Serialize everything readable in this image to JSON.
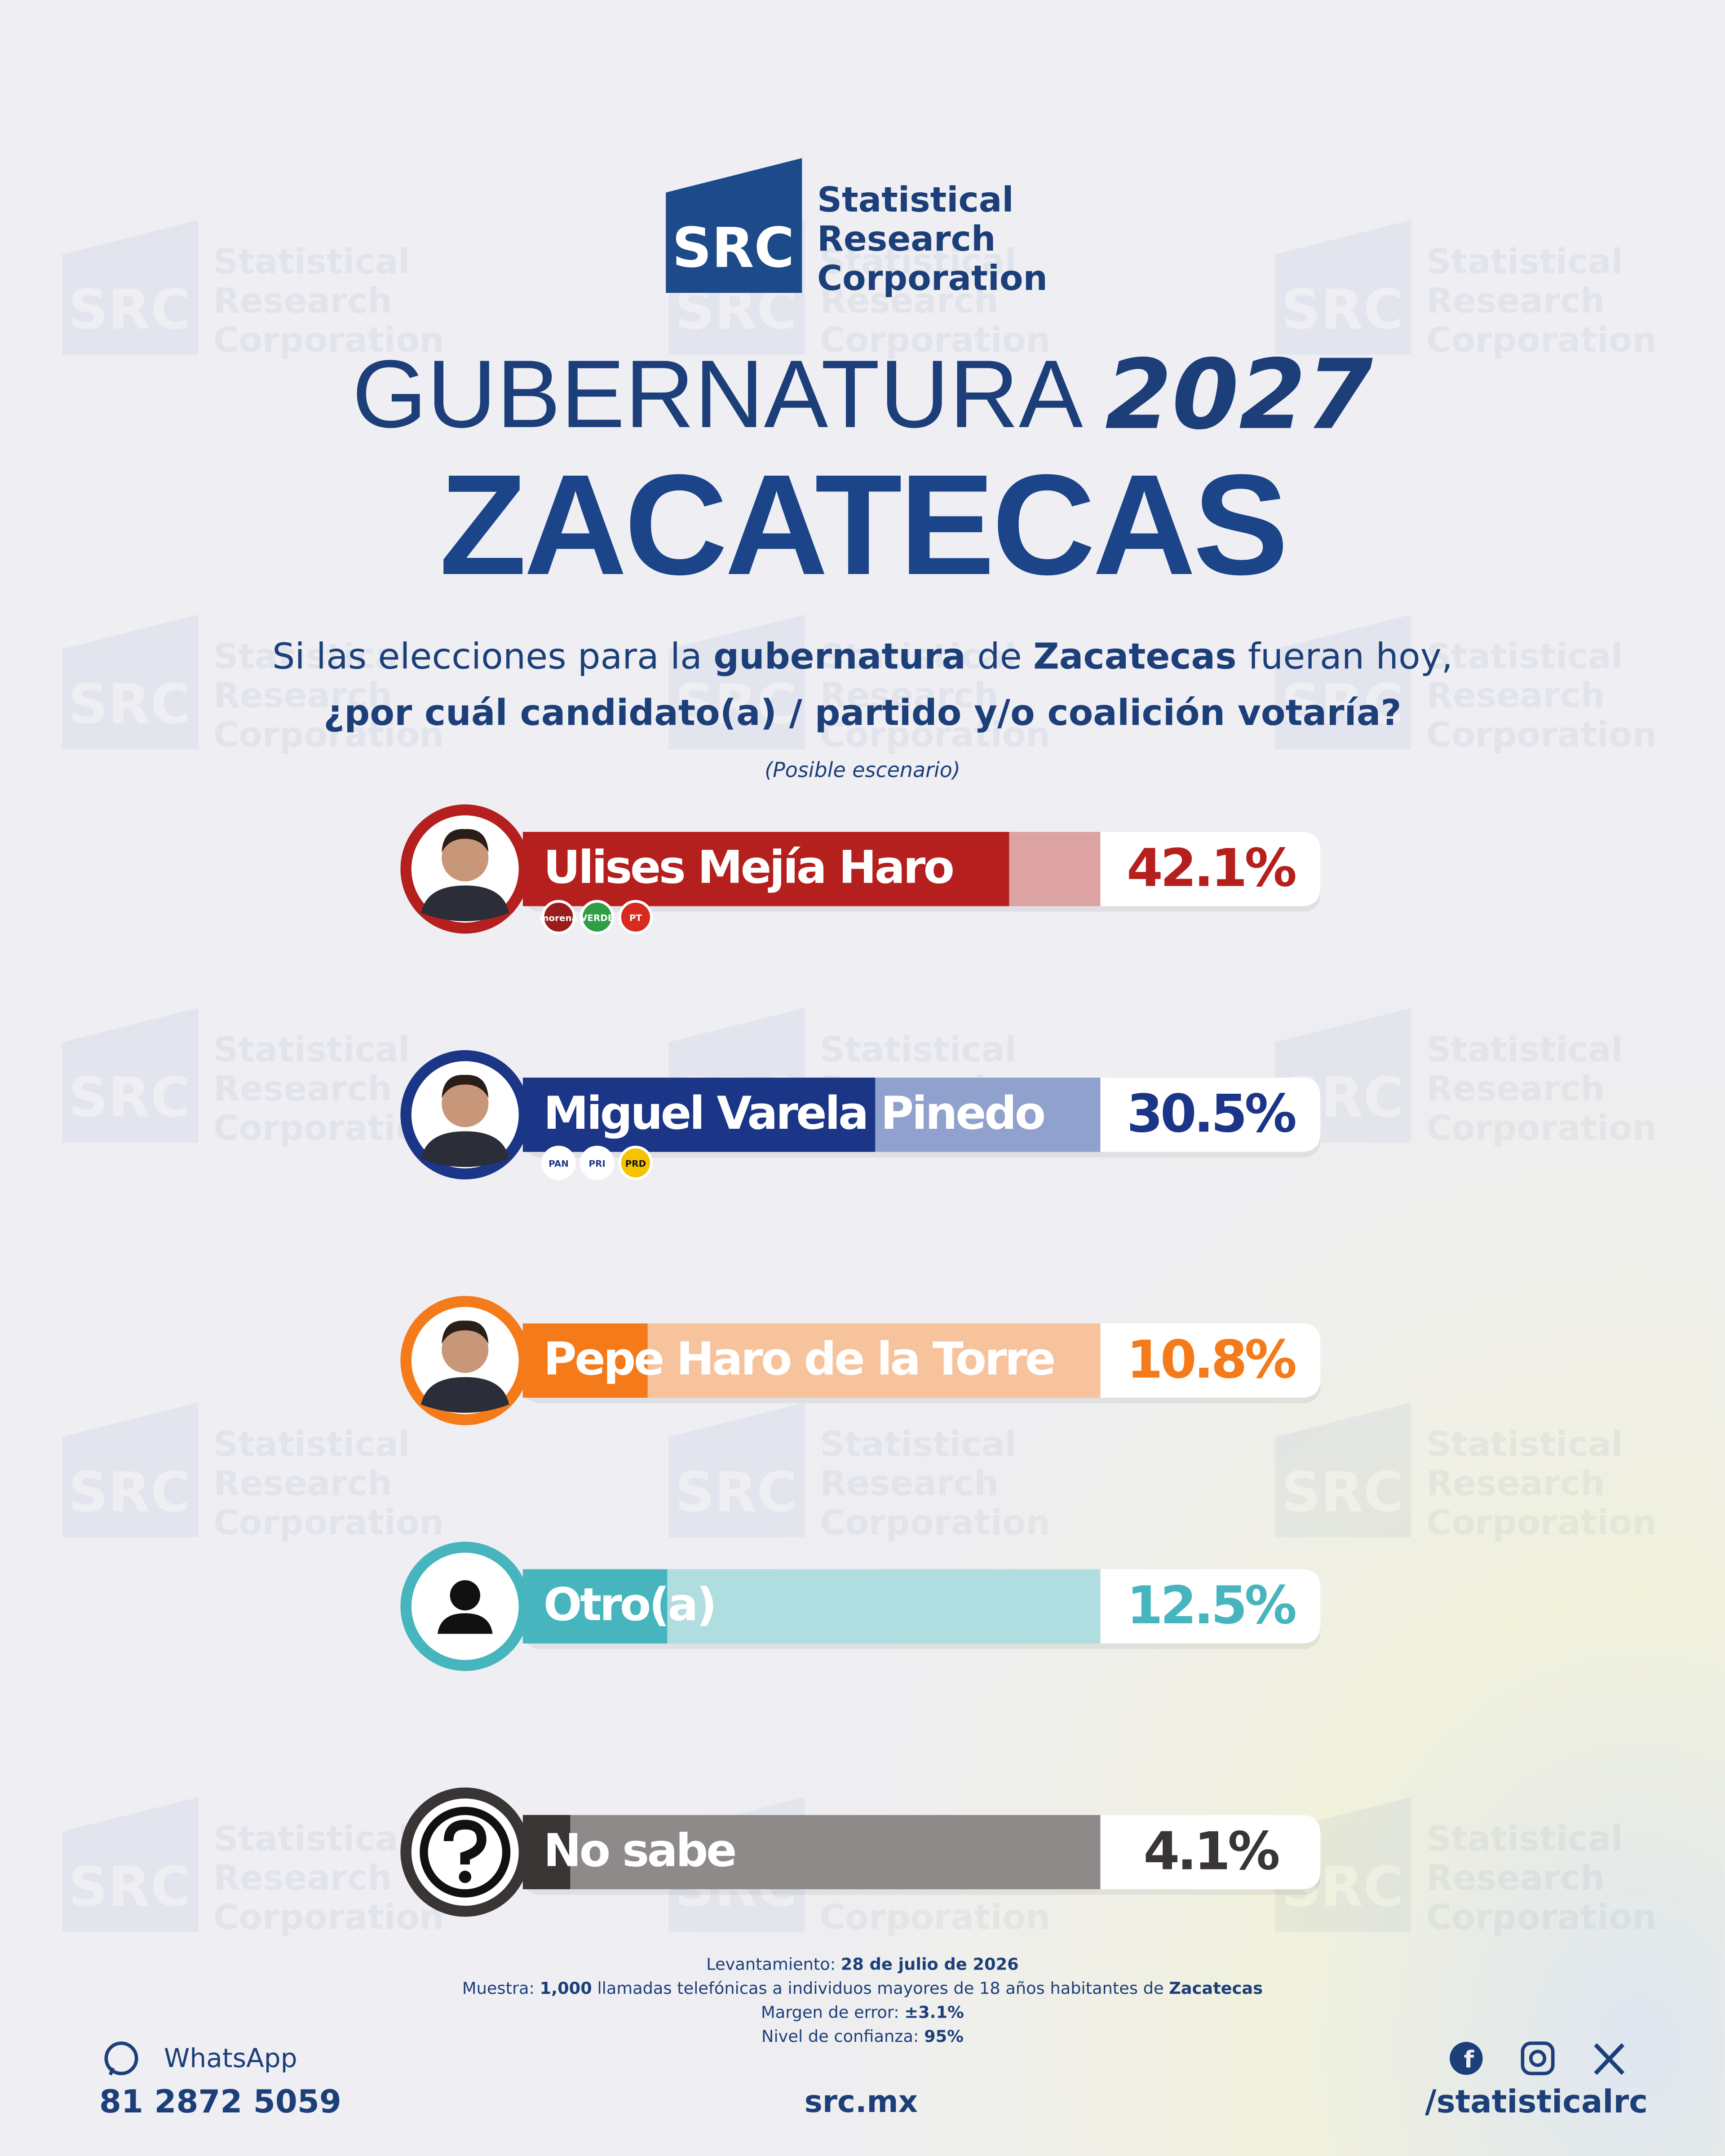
{
  "header": {
    "logo_mark": "SRC",
    "logo_lines": [
      "Statistical",
      "Research",
      "Corporation"
    ]
  },
  "chart_data": {
    "type": "bar",
    "orientation": "horizontal",
    "title": "GUBERNATURA",
    "title_year": "2027",
    "subtitle": "ZACATECAS",
    "question": [
      [
        {
          "text": "Si las elecciones para la ",
          "bold": false
        },
        {
          "text": "gubernatura",
          "bold": true
        },
        {
          "text": " de ",
          "bold": false
        },
        {
          "text": "Zacatecas",
          "bold": true
        },
        {
          "text": " fueran hoy,",
          "bold": false
        }
      ],
      [
        {
          "text": "¿por cuál candidato(a) / partido y/o coalición votaría?",
          "bold": true
        }
      ]
    ],
    "note": "(Posible escenario)",
    "categories": [
      "Ulises Mejía Haro",
      "Miguel Varela Pinedo",
      "Pepe Haro de la Torre",
      "Otro(a)",
      "No sabe"
    ],
    "values": [
      42.1,
      30.5,
      10.8,
      12.5,
      4.1
    ],
    "value_labels": [
      "42.1%",
      "30.5%",
      "10.8%",
      "12.5%",
      "4.1%"
    ],
    "colors": [
      "#b5201f",
      "#1c3687",
      "#f47a1a",
      "#46b5bd",
      "#3a3535"
    ],
    "track_colors": [
      "#dda3a3",
      "#8fa1cc",
      "#f6c39c",
      "#b0dde0",
      "#8f8a8a"
    ],
    "parties": [
      [
        "morena",
        "VERDE",
        "PT"
      ],
      [
        "PAN",
        "PRI",
        "PRD"
      ],
      [],
      [],
      []
    ],
    "party_colors": [
      [
        "#9b1c1c",
        "#2f9e44",
        "#d62b1e"
      ],
      [
        "#ffffff",
        "#ffffff",
        "#f5c300"
      ],
      [],
      [],
      []
    ],
    "xlim": [
      0,
      50
    ]
  },
  "footer": {
    "methodology": [
      [
        {
          "text": "Levantamiento: ",
          "bold": false
        },
        {
          "text": "28 de julio de 2026",
          "bold": true
        }
      ],
      [
        {
          "text": "Muestra: ",
          "bold": false
        },
        {
          "text": "1,000",
          "bold": true
        },
        {
          "text": " llamadas telefónicas a individuos mayores de 18 años habitantes de ",
          "bold": false
        },
        {
          "text": "Zacatecas",
          "bold": true
        }
      ],
      [
        {
          "text": "Margen de error: ",
          "bold": false
        },
        {
          "text": "±3.1%",
          "bold": true
        }
      ],
      [
        {
          "text": "Nivel de confianza: ",
          "bold": false
        },
        {
          "text": "95%",
          "bold": true
        }
      ]
    ],
    "whatsapp_label": "WhatsApp",
    "phone": "81 2872 5059",
    "website": "src.mx",
    "social": "/statisticalrc"
  }
}
